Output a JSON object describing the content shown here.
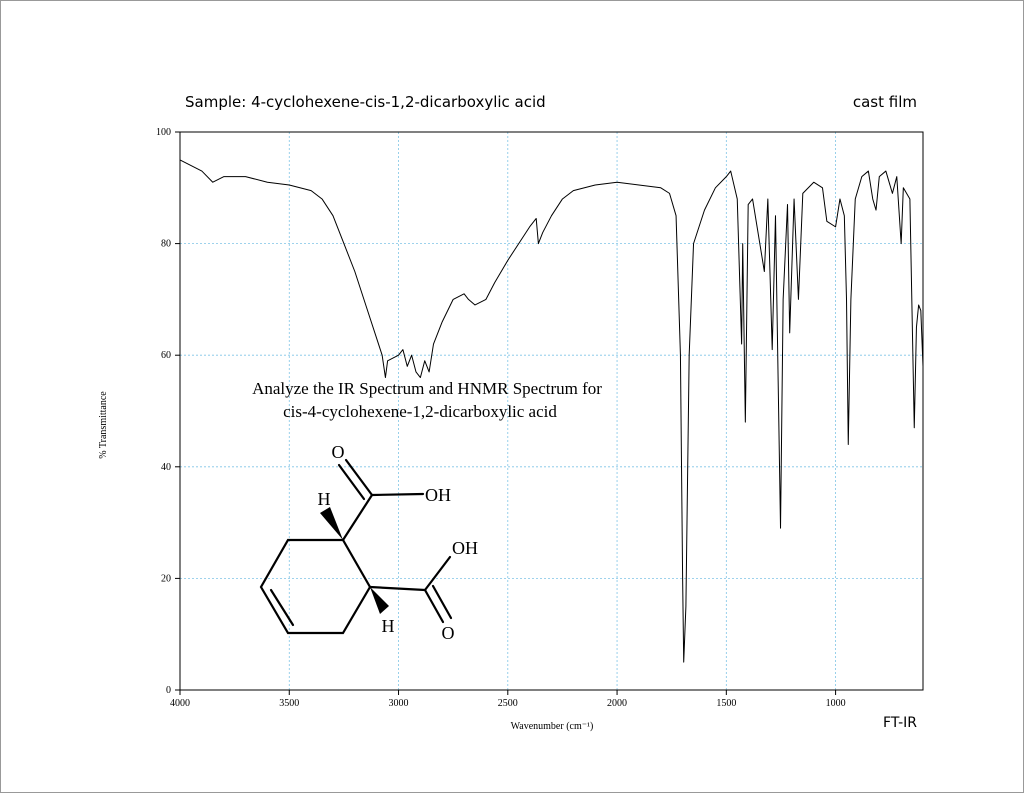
{
  "chart_data": {
    "type": "line",
    "title": "Sample: 4-cyclohexene-cis-1,2-dicarboxylic acid",
    "subtitle": "cast film",
    "technique": "FT-IR",
    "x_label": "Wavenumber (cm⁻¹)",
    "y_label": "% Transmittance",
    "annotation": [
      "Analyze the IR Spectrum and HNMR Spectrum for",
      "cis-4-cyclohexene-1,2-dicarboxylic acid"
    ],
    "structure_labels": [
      "O",
      "OH",
      "H",
      "OH",
      "H",
      "O"
    ],
    "color": "#000000",
    "grid": true,
    "xlim": [
      4000,
      600
    ],
    "ylim": [
      0,
      100
    ],
    "xticks": [
      4000,
      3500,
      3000,
      2500,
      2000,
      1500,
      1000
    ],
    "yticks": [
      0,
      20,
      40,
      60,
      80,
      100
    ],
    "x": [
      4000,
      3900,
      3850,
      3800,
      3700,
      3600,
      3500,
      3400,
      3350,
      3300,
      3250,
      3200,
      3150,
      3100,
      3075,
      3060,
      3050,
      3000,
      2980,
      2960,
      2940,
      2920,
      2900,
      2880,
      2860,
      2840,
      2800,
      2750,
      2700,
      2680,
      2650,
      2600,
      2560,
      2500,
      2450,
      2400,
      2370,
      2360,
      2340,
      2300,
      2250,
      2200,
      2100,
      2000,
      1900,
      1800,
      1760,
      1730,
      1710,
      1700,
      1695,
      1685,
      1670,
      1650,
      1600,
      1550,
      1500,
      1480,
      1450,
      1430,
      1425,
      1413,
      1400,
      1380,
      1326,
      1310,
      1290,
      1275,
      1252,
      1240,
      1220,
      1210,
      1190,
      1170,
      1150,
      1100,
      1060,
      1040,
      1000,
      980,
      960,
      950,
      942,
      930,
      910,
      880,
      850,
      830,
      815,
      800,
      770,
      740,
      720,
      700,
      690,
      660,
      640,
      630,
      620,
      610,
      600
    ],
    "values": [
      95,
      93,
      91,
      92,
      92,
      91,
      90.5,
      89.5,
      88,
      85,
      80,
      75,
      69,
      63,
      60,
      56,
      59,
      60,
      61,
      58,
      60,
      57,
      56,
      59,
      57,
      62,
      66,
      70,
      71,
      70,
      69,
      70,
      73,
      77,
      80,
      83,
      84.5,
      80,
      82,
      85,
      88,
      89.5,
      90.5,
      91,
      90.5,
      90,
      89,
      85,
      60,
      20,
      5,
      15,
      60,
      80,
      86,
      90,
      92,
      93,
      88,
      62,
      80,
      48,
      87,
      88,
      75,
      88,
      61,
      85,
      29,
      70,
      87,
      64,
      88,
      70,
      89,
      91,
      90,
      84,
      83,
      88,
      85,
      70,
      44,
      70,
      88,
      92,
      93,
      88,
      86,
      92,
      93,
      89,
      92,
      80,
      90,
      88,
      47,
      65,
      69,
      68,
      58
    ]
  }
}
